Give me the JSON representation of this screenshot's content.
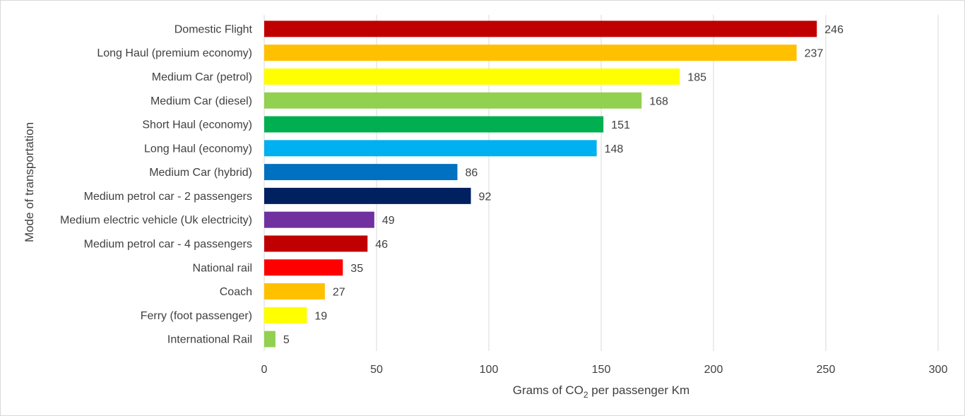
{
  "chart_data": {
    "type": "bar",
    "orientation": "horizontal",
    "categories": [
      "Domestic Flight",
      "Long Haul (premium economy)",
      "Medium Car (petrol)",
      "Medium Car (diesel)",
      "Short Haul (economy)",
      "Long Haul (economy)",
      "Medium Car (hybrid)",
      "Medium petrol car - 2 passengers",
      "Medium electric vehicle (Uk electricity)",
      "Medium petrol car - 4 passengers",
      "National rail",
      "Coach",
      "Ferry (foot passenger)",
      "International Rail"
    ],
    "values": [
      246,
      237,
      185,
      168,
      151,
      148,
      86,
      92,
      49,
      46,
      35,
      27,
      19,
      5
    ],
    "colors": [
      "#c00000",
      "#ffc000",
      "#ffff00",
      "#92d050",
      "#00b050",
      "#00b0f0",
      "#0070c0",
      "#002060",
      "#7030a0",
      "#c00000",
      "#ff0000",
      "#ffc000",
      "#ffff00",
      "#92d050"
    ],
    "xlim": [
      0,
      300
    ],
    "xticks": [
      "0",
      "50",
      "100",
      "150",
      "200",
      "250",
      "300"
    ],
    "xticks_values": [
      0,
      50,
      100,
      150,
      200,
      250,
      300
    ],
    "xlabel_parts": {
      "before": "Grams of CO",
      "sub": "2",
      "after": " per passenger Km"
    },
    "ylabel": "Mode of transportation",
    "grid": "vertical",
    "legend": "none",
    "gridline_color": "#d9d9d9",
    "text_color": "#404040"
  }
}
